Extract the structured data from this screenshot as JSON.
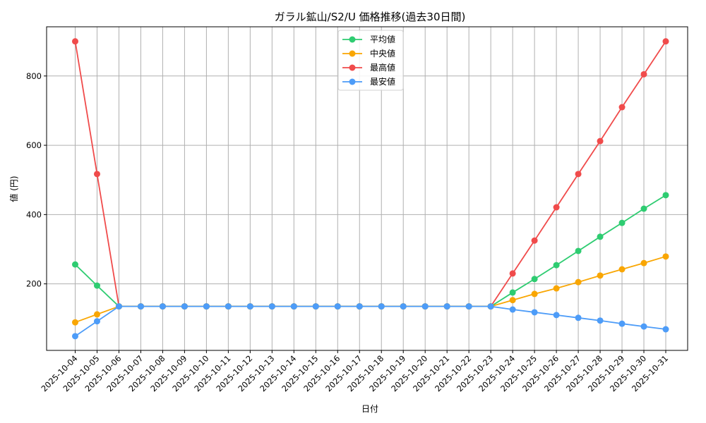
{
  "chart_data": {
    "type": "line",
    "title": "ガラル鉱山/S2/U 価格推移(過去30日間)",
    "xlabel": "日付",
    "ylabel": "値 (円)",
    "ylim": [
      8,
      942
    ],
    "yticks": [
      200,
      400,
      600,
      800
    ],
    "grid": true,
    "legend_position": "upper center",
    "categories": [
      "2025-10-04",
      "2025-10-05",
      "2025-10-06",
      "2025-10-07",
      "2025-10-08",
      "2025-10-09",
      "2025-10-10",
      "2025-10-11",
      "2025-10-12",
      "2025-10-13",
      "2025-10-14",
      "2025-10-15",
      "2025-10-16",
      "2025-10-17",
      "2025-10-18",
      "2025-10-19",
      "2025-10-20",
      "2025-10-21",
      "2025-10-22",
      "2025-10-23",
      "2025-10-24",
      "2025-10-25",
      "2025-10-26",
      "2025-10-27",
      "2025-10-28",
      "2025-10-29",
      "2025-10-30",
      "2025-10-31"
    ],
    "series": [
      {
        "name": "平均値",
        "color": "#2ecc71",
        "values": [
          256,
          195,
          135,
          135,
          135,
          135,
          135,
          135,
          135,
          135,
          135,
          135,
          135,
          135,
          135,
          135,
          135,
          135,
          135,
          135,
          175,
          214,
          254,
          295,
          336,
          376,
          417,
          456
        ]
      },
      {
        "name": "中央値",
        "color": "#f9a602",
        "values": [
          89,
          112,
          135,
          135,
          135,
          135,
          135,
          135,
          135,
          135,
          135,
          135,
          135,
          135,
          135,
          135,
          135,
          135,
          135,
          135,
          153,
          171,
          187,
          205,
          224,
          242,
          260,
          279
        ]
      },
      {
        "name": "最高値",
        "color": "#f04b4b",
        "values": [
          900,
          517,
          135,
          135,
          135,
          135,
          135,
          135,
          135,
          135,
          135,
          135,
          135,
          135,
          135,
          135,
          135,
          135,
          135,
          135,
          230,
          325,
          421,
          517,
          612,
          710,
          805,
          900
        ]
      },
      {
        "name": "最安値",
        "color": "#4d9cf8",
        "values": [
          49,
          92,
          135,
          135,
          135,
          135,
          135,
          135,
          135,
          135,
          135,
          135,
          135,
          135,
          135,
          135,
          135,
          135,
          135,
          135,
          126,
          118,
          110,
          102,
          94,
          85,
          77,
          69
        ]
      }
    ]
  }
}
